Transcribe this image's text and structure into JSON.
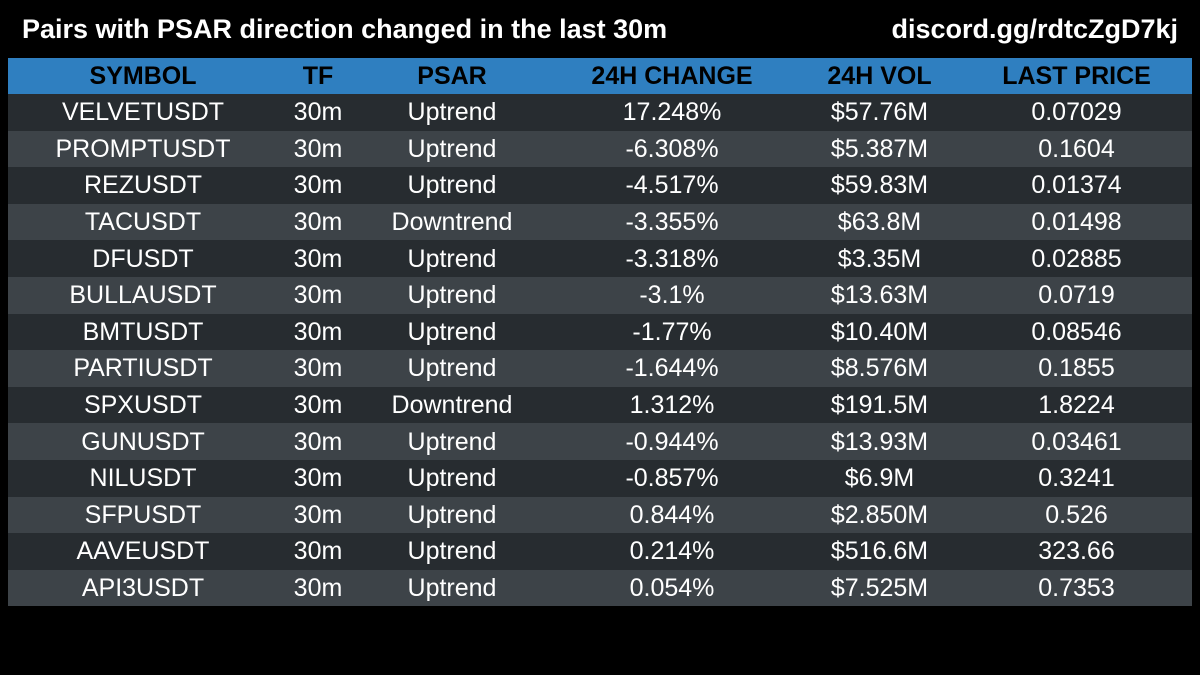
{
  "header": {
    "title": "Pairs with PSAR direction changed in the last 30m",
    "link": "discord.gg/rdtcZgD7kj"
  },
  "colors": {
    "header_row": "#2f7fc0",
    "row_dark": "#272c30",
    "row_light": "#3d4348",
    "background": "#000000"
  },
  "chart_data": {
    "type": "table",
    "columns": [
      "SYMBOL",
      "TF",
      "PSAR",
      "24H CHANGE",
      "24H VOL",
      "LAST PRICE"
    ],
    "rows": [
      [
        "VELVETUSDT",
        "30m",
        "Uptrend",
        "17.248%",
        "$57.76M",
        "0.07029"
      ],
      [
        "PROMPTUSDT",
        "30m",
        "Uptrend",
        "-6.308%",
        "$5.387M",
        "0.1604"
      ],
      [
        "REZUSDT",
        "30m",
        "Uptrend",
        "-4.517%",
        "$59.83M",
        "0.01374"
      ],
      [
        "TACUSDT",
        "30m",
        "Downtrend",
        "-3.355%",
        "$63.8M",
        "0.01498"
      ],
      [
        "DFUSDT",
        "30m",
        "Uptrend",
        "-3.318%",
        "$3.35M",
        "0.02885"
      ],
      [
        "BULLAUSDT",
        "30m",
        "Uptrend",
        "-3.1%",
        "$13.63M",
        "0.0719"
      ],
      [
        "BMTUSDT",
        "30m",
        "Uptrend",
        "-1.77%",
        "$10.40M",
        "0.08546"
      ],
      [
        "PARTIUSDT",
        "30m",
        "Uptrend",
        "-1.644%",
        "$8.576M",
        "0.1855"
      ],
      [
        "SPXUSDT",
        "30m",
        "Downtrend",
        "1.312%",
        "$191.5M",
        "1.8224"
      ],
      [
        "GUNUSDT",
        "30m",
        "Uptrend",
        "-0.944%",
        "$13.93M",
        "0.03461"
      ],
      [
        "NILUSDT",
        "30m",
        "Uptrend",
        "-0.857%",
        "$6.9M",
        "0.3241"
      ],
      [
        "SFPUSDT",
        "30m",
        "Uptrend",
        "0.844%",
        "$2.850M",
        "0.526"
      ],
      [
        "AAVEUSDT",
        "30m",
        "Uptrend",
        "0.214%",
        "$516.6M",
        "323.66"
      ],
      [
        "API3USDT",
        "30m",
        "Uptrend",
        "0.054%",
        "$7.525M",
        "0.7353"
      ]
    ]
  }
}
